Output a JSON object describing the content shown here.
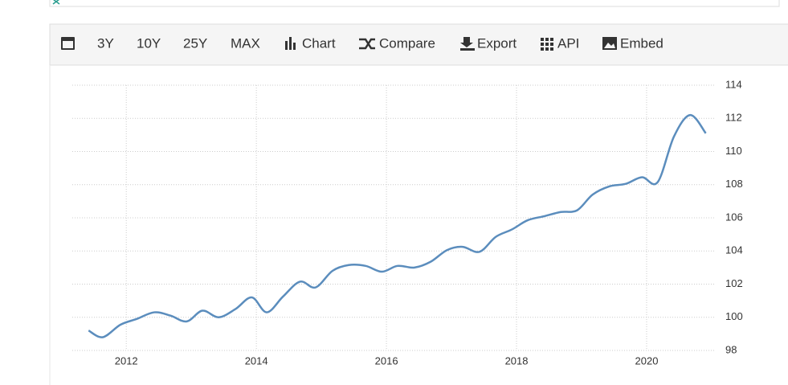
{
  "toolbar": [
    "3Y",
    "10Y",
    "25Y",
    "MAX",
    "Chart",
    "Compare",
    "Export",
    "API",
    "Embed"
  ],
  "chart_data": {
    "type": "line",
    "x": [
      2011.42,
      2011.64,
      2011.91,
      2012.16,
      2012.43,
      2012.68,
      2012.93,
      2013.17,
      2013.42,
      2013.68,
      2013.93,
      2014.16,
      2014.41,
      2014.67,
      2014.91,
      2015.17,
      2015.42,
      2015.68,
      2015.93,
      2016.17,
      2016.43,
      2016.68,
      2016.93,
      2017.17,
      2017.43,
      2017.68,
      2017.93,
      2018.17,
      2018.43,
      2018.68,
      2018.93,
      2019.17,
      2019.43,
      2019.68,
      2019.93,
      2020.17,
      2020.42,
      2020.67,
      2020.91
    ],
    "values": [
      99.2,
      98.8,
      99.55,
      99.9,
      100.3,
      100.1,
      99.75,
      100.4,
      100.0,
      100.5,
      101.2,
      100.3,
      101.25,
      102.15,
      101.8,
      102.8,
      103.15,
      103.1,
      102.75,
      103.1,
      103.0,
      103.35,
      104.05,
      104.25,
      103.95,
      104.85,
      105.3,
      105.85,
      106.1,
      106.35,
      106.45,
      107.4,
      107.9,
      108.05,
      108.45,
      108.15,
      110.9,
      112.2,
      111.1
    ],
    "color": "#5b8dbd",
    "xlim": [
      2011.17,
      2021.05
    ],
    "xticks": [
      2012,
      2014,
      2016,
      2018,
      2020
    ],
    "ylim": [
      98,
      114
    ],
    "yticks": [
      98,
      100,
      102,
      104,
      106,
      108,
      110,
      112,
      114
    ],
    "grid": true
  }
}
